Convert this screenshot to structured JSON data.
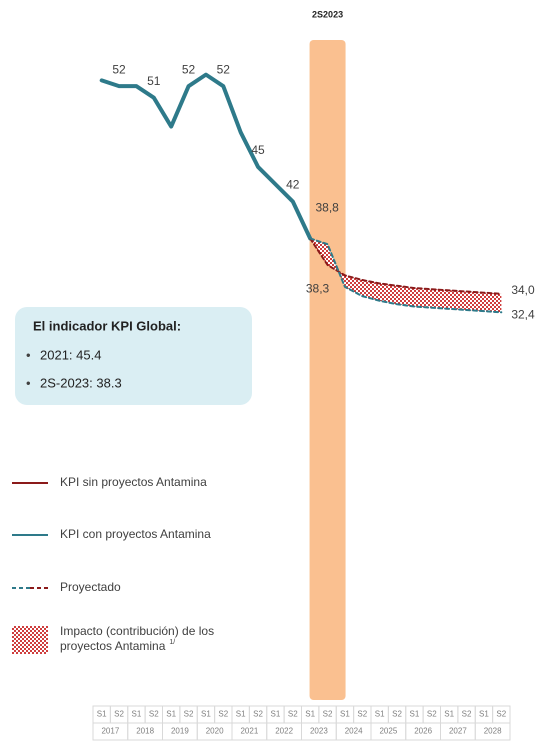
{
  "chart_data": {
    "type": "line",
    "band_title": "2S2023",
    "band_index": 13,
    "band_color": "#fac090",
    "categories": [
      "S1",
      "S2",
      "S1",
      "S2",
      "S1",
      "S2",
      "S1",
      "S2",
      "S1",
      "S2",
      "S1",
      "S2",
      "S1",
      "S2",
      "S1",
      "S2",
      "S1",
      "S2",
      "S1",
      "S2",
      "S1",
      "S2",
      "S1",
      "S2"
    ],
    "years": [
      "2017",
      "2018",
      "2019",
      "2020",
      "2021",
      "2022",
      "2023",
      "2024",
      "2025",
      "2026",
      "2027",
      "2028"
    ],
    "ylim": [
      30,
      56
    ],
    "projected_from": 12,
    "series": [
      {
        "name": "KPI sin proyectos Antamina",
        "color": "#8b1a1a",
        "values": [
          null,
          null,
          null,
          null,
          null,
          null,
          null,
          null,
          null,
          null,
          null,
          null,
          38.8,
          36.5,
          35.6,
          35.2,
          34.9,
          34.7,
          34.5,
          34.4,
          34.3,
          34.2,
          34.1,
          34.0
        ],
        "value_labels": [
          null,
          null,
          null,
          null,
          null,
          null,
          null,
          null,
          null,
          null,
          null,
          null,
          null,
          null,
          null,
          null,
          null,
          null,
          null,
          null,
          null,
          null,
          null,
          "34,0"
        ]
      },
      {
        "name": "KPI con proyectos Antamina",
        "color": "#2e7a8a",
        "values": [
          52.5,
          52,
          52,
          51,
          48.5,
          52,
          53,
          52,
          48,
          45,
          43.5,
          42,
          38.8,
          38.3,
          34.6,
          33.8,
          33.4,
          33.1,
          32.9,
          32.8,
          32.7,
          32.6,
          32.5,
          32.4
        ],
        "value_labels": [
          null,
          "52",
          null,
          "51",
          null,
          "52",
          null,
          "52",
          null,
          "45",
          null,
          "42",
          "38,8",
          "38,3",
          null,
          null,
          null,
          null,
          null,
          null,
          null,
          null,
          null,
          "32,4"
        ]
      }
    ],
    "legend_extra": [
      "Proyectado",
      "Impacto (contribución) de los proyectos Antamina"
    ],
    "footnote_mark": "1/",
    "info_box": {
      "title": "El indicador KPI Global:",
      "items": [
        "2021: 45.4",
        "2S-2023: 38.3"
      ]
    }
  }
}
